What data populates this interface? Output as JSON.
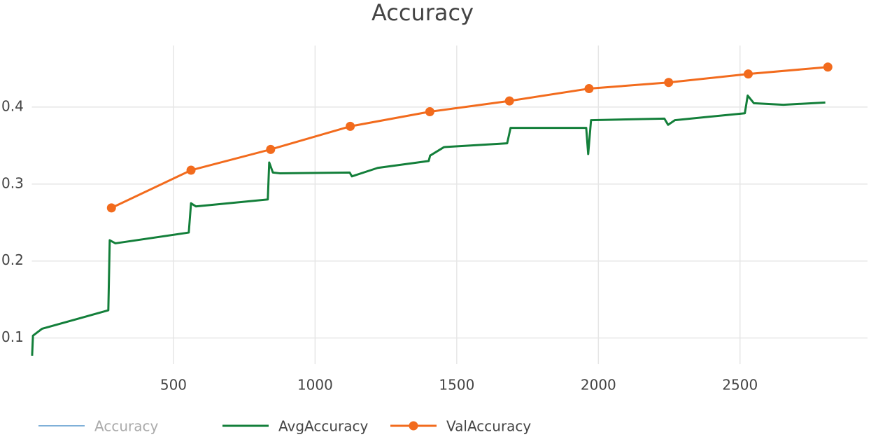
{
  "chart_data": {
    "type": "line",
    "title": "Accuracy",
    "xlim": [
      0,
      2950
    ],
    "ylim": [
      0.066,
      0.48
    ],
    "xticks": [
      500,
      1000,
      1500,
      2000,
      2500
    ],
    "yticks": [
      0.1,
      0.2,
      0.3,
      0.4
    ],
    "grid": true,
    "legend": "bottom",
    "series": [
      {
        "name": "Accuracy",
        "color": "#7fb0d8",
        "visible": false,
        "markers": false,
        "x": [],
        "values": []
      },
      {
        "name": "AvgAccuracy",
        "color": "#137f3a",
        "markers": false,
        "x": [
          1,
          4,
          36,
          270,
          275,
          295,
          554,
          562,
          579,
          833,
          838,
          851,
          875,
          1122,
          1130,
          1221,
          1401,
          1406,
          1455,
          1678,
          1690,
          1957,
          1964,
          1974,
          2233,
          2246,
          2270,
          2517,
          2527,
          2549,
          2653,
          2801
        ],
        "values": [
          0.077,
          0.103,
          0.112,
          0.136,
          0.227,
          0.223,
          0.237,
          0.275,
          0.271,
          0.28,
          0.328,
          0.315,
          0.314,
          0.315,
          0.31,
          0.321,
          0.33,
          0.337,
          0.348,
          0.353,
          0.373,
          0.373,
          0.339,
          0.383,
          0.385,
          0.377,
          0.383,
          0.392,
          0.415,
          0.405,
          0.403,
          0.406
        ]
      },
      {
        "name": "ValAccuracy",
        "color": "#f26b1d",
        "markers": true,
        "x": [
          281,
          562,
          843,
          1124,
          1405,
          1686,
          1967,
          2248,
          2529,
          2810
        ],
        "values": [
          0.269,
          0.318,
          0.345,
          0.375,
          0.394,
          0.408,
          0.424,
          0.432,
          0.443,
          0.452
        ]
      }
    ]
  }
}
